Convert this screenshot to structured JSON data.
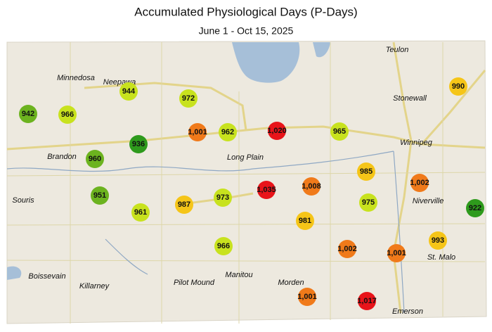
{
  "header": {
    "title": "Accumulated Physiological Days (P-Days)",
    "subtitle": "June 1 - Oct 15, 2025"
  },
  "places": [
    "Teulon",
    "Minnedosa",
    "Neepawa",
    "Stonewall",
    "Winnipeg",
    "Brandon",
    "Long Plain",
    "Souris",
    "Niverville",
    "St. Malo",
    "Boissevain",
    "Killarney",
    "Pilot Mound",
    "Manitou",
    "Morden",
    "Emerson"
  ],
  "stations": [
    {
      "label": "944",
      "color": "#c8e21e"
    },
    {
      "label": "942",
      "color": "#6cb31f"
    },
    {
      "label": "966",
      "color": "#c8e21e"
    },
    {
      "label": "972",
      "color": "#c8e21e"
    },
    {
      "label": "936",
      "color": "#2e9a1c"
    },
    {
      "label": "960",
      "color": "#6cb31f"
    },
    {
      "label": "1,001",
      "color": "#f07a1a"
    },
    {
      "label": "962",
      "color": "#c8e21e"
    },
    {
      "label": "1,020",
      "color": "#e8141a"
    },
    {
      "label": "965",
      "color": "#c8e21e"
    },
    {
      "label": "990",
      "color": "#f5c518"
    },
    {
      "label": "985",
      "color": "#f5c518"
    },
    {
      "label": "1,002",
      "color": "#f07a1a"
    },
    {
      "label": "922",
      "color": "#2e9a1c"
    },
    {
      "label": "951",
      "color": "#6cb31f"
    },
    {
      "label": "961",
      "color": "#c8e21e"
    },
    {
      "label": "987",
      "color": "#f5c518"
    },
    {
      "label": "973",
      "color": "#c8e21e"
    },
    {
      "label": "1,035",
      "color": "#e8141a"
    },
    {
      "label": "1,008",
      "color": "#f07a1a"
    },
    {
      "label": "975",
      "color": "#c8e21e"
    },
    {
      "label": "981",
      "color": "#f5c518"
    },
    {
      "label": "993",
      "color": "#f5c518"
    },
    {
      "label": "966",
      "color": "#c8e21e"
    },
    {
      "label": "1,002",
      "color": "#f07a1a"
    },
    {
      "label": "1,001",
      "color": "#f07a1a"
    },
    {
      "label": "1,001",
      "color": "#f07a1a"
    },
    {
      "label": "1,017",
      "color": "#e8141a"
    }
  ]
}
